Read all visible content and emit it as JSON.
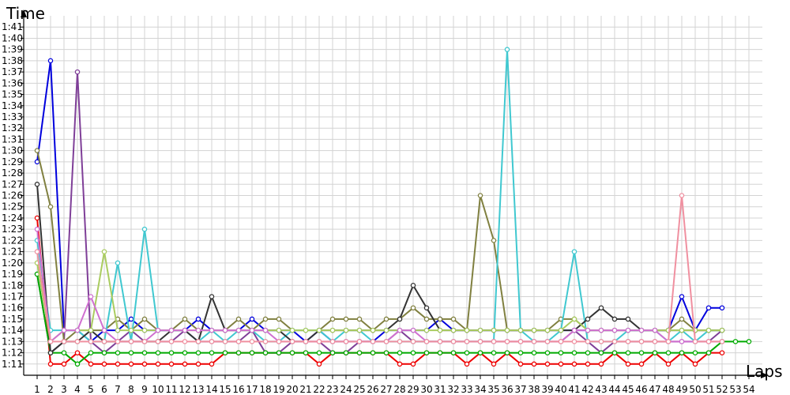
{
  "chart_data": {
    "type": "line",
    "xlabel": "Laps",
    "ylabel": "Time",
    "grid": true,
    "legend": "none",
    "x_ticks": [
      "1",
      "2",
      "3",
      "4",
      "5",
      "6",
      "7",
      "8",
      "9",
      "10",
      "11",
      "12",
      "13",
      "14",
      "15",
      "16",
      "17",
      "18",
      "19",
      "20",
      "21",
      "22",
      "23",
      "24",
      "25",
      "26",
      "27",
      "28",
      "29",
      "30",
      "31",
      "32",
      "33",
      "34",
      "35",
      "36",
      "37",
      "38",
      "39",
      "40",
      "41",
      "42",
      "43",
      "44",
      "45",
      "46",
      "47",
      "48",
      "49",
      "50",
      "51",
      "52",
      "53",
      "54"
    ],
    "y_ticks": [
      "1:11",
      "1:12",
      "1:13",
      "1:14",
      "1:15",
      "1:16",
      "1:17",
      "1:18",
      "1:19",
      "1:20",
      "1:21",
      "1:22",
      "1:23",
      "1:24",
      "1:25",
      "1:26",
      "1:27",
      "1:28",
      "1:29",
      "1:30",
      "1:31",
      "1:32",
      "1:33",
      "1:34",
      "1:35",
      "1:36",
      "1:37",
      "1:38",
      "1:39",
      "1:40",
      "1:41"
    ],
    "ylim": [
      70,
      102
    ],
    "xlim": [
      0,
      55
    ],
    "series": [
      {
        "color": "#0000dd",
        "values": [
          89,
          98,
          74,
          74,
          73,
          74,
          74,
          75,
          74,
          74,
          74,
          74,
          75,
          74,
          74,
          74,
          75,
          74,
          74,
          74,
          73,
          74,
          73,
          73,
          73,
          73,
          74,
          74,
          74,
          74,
          75,
          74,
          74,
          74,
          74,
          74,
          74,
          74,
          74,
          74,
          74,
          74,
          74,
          74,
          74,
          74,
          74,
          74,
          77,
          74,
          76,
          76,
          null,
          null
        ]
      },
      {
        "color": "#ee0000",
        "values": [
          84,
          71,
          71,
          72,
          71,
          71,
          71,
          71,
          71,
          71,
          71,
          71,
          71,
          71,
          72,
          72,
          72,
          72,
          72,
          72,
          72,
          71,
          72,
          72,
          72,
          72,
          72,
          71,
          71,
          72,
          72,
          72,
          71,
          72,
          71,
          72,
          71,
          71,
          71,
          71,
          71,
          71,
          71,
          72,
          71,
          71,
          72,
          71,
          72,
          71,
          72,
          72,
          null,
          null
        ]
      },
      {
        "color": "#7f3f98",
        "values": [
          79,
          72,
          73,
          97,
          73,
          72,
          73,
          74,
          73,
          73,
          73,
          74,
          73,
          73,
          73,
          73,
          74,
          72,
          72,
          73,
          73,
          73,
          72,
          72,
          73,
          73,
          73,
          74,
          73,
          73,
          73,
          73,
          73,
          73,
          73,
          73,
          73,
          73,
          73,
          73,
          74,
          73,
          72,
          73,
          73,
          73,
          73,
          73,
          73,
          73,
          73,
          74,
          null,
          null
        ]
      },
      {
        "color": "#808040",
        "values": [
          90,
          85,
          73,
          74,
          74,
          74,
          75,
          74,
          75,
          74,
          74,
          75,
          74,
          74,
          74,
          75,
          74,
          75,
          75,
          74,
          74,
          74,
          75,
          75,
          75,
          74,
          75,
          75,
          76,
          75,
          75,
          75,
          74,
          86,
          82,
          74,
          74,
          74,
          74,
          75,
          75,
          74,
          74,
          74,
          74,
          74,
          74,
          74,
          75,
          74,
          74,
          74,
          null,
          null
        ]
      },
      {
        "color": "#00aa00",
        "values": [
          79,
          72,
          72,
          71,
          72,
          72,
          72,
          72,
          72,
          72,
          72,
          72,
          72,
          72,
          72,
          72,
          72,
          72,
          72,
          72,
          72,
          72,
          72,
          72,
          72,
          72,
          72,
          72,
          72,
          72,
          72,
          72,
          72,
          72,
          72,
          72,
          72,
          72,
          72,
          72,
          72,
          72,
          72,
          72,
          72,
          72,
          72,
          72,
          72,
          72,
          72,
          73,
          73,
          73
        ]
      },
      {
        "color": "#40c8d0",
        "values": [
          82,
          74,
          74,
          74,
          73,
          73,
          80,
          73,
          83,
          74,
          74,
          74,
          73,
          74,
          73,
          74,
          74,
          73,
          73,
          74,
          74,
          74,
          73,
          74,
          74,
          73,
          73,
          73,
          73,
          73,
          73,
          73,
          73,
          73,
          73,
          99,
          74,
          73,
          73,
          74,
          81,
          73,
          73,
          73,
          74,
          74,
          74,
          73,
          74,
          73,
          74,
          74,
          null,
          null
        ]
      },
      {
        "color": "#333333",
        "values": [
          87,
          72,
          73,
          73,
          74,
          73,
          73,
          73,
          73,
          73,
          74,
          74,
          73,
          77,
          74,
          74,
          74,
          74,
          74,
          73,
          73,
          74,
          74,
          74,
          74,
          74,
          74,
          75,
          78,
          76,
          74,
          74,
          74,
          74,
          74,
          74,
          74,
          74,
          74,
          74,
          74,
          75,
          76,
          75,
          75,
          74,
          74,
          74,
          74,
          74,
          74,
          74,
          null,
          null
        ]
      },
      {
        "color": "#aacc60",
        "values": [
          80,
          73,
          74,
          74,
          74,
          81,
          74,
          74,
          74,
          74,
          74,
          74,
          74,
          74,
          74,
          74,
          74,
          74,
          74,
          74,
          74,
          74,
          74,
          74,
          74,
          74,
          74,
          74,
          74,
          74,
          74,
          74,
          74,
          74,
          74,
          74,
          74,
          74,
          74,
          74,
          75,
          74,
          74,
          74,
          74,
          74,
          74,
          74,
          74,
          74,
          74,
          74,
          null,
          null
        ]
      },
      {
        "color": "#d070d0",
        "values": [
          83,
          73,
          74,
          74,
          77,
          74,
          73,
          73,
          73,
          74,
          74,
          74,
          74,
          74,
          74,
          74,
          74,
          74,
          73,
          73,
          73,
          73,
          73,
          73,
          73,
          73,
          73,
          74,
          74,
          73,
          73,
          73,
          73,
          73,
          73,
          73,
          73,
          73,
          73,
          73,
          74,
          74,
          74,
          74,
          74,
          74,
          74,
          73,
          73,
          73,
          73,
          73,
          null,
          null
        ]
      },
      {
        "color": "#f090a0",
        "values": [
          81,
          73,
          73,
          73,
          73,
          73,
          73,
          73,
          73,
          73,
          73,
          73,
          73,
          73,
          73,
          73,
          73,
          73,
          73,
          73,
          73,
          73,
          73,
          73,
          73,
          73,
          73,
          73,
          73,
          73,
          73,
          73,
          73,
          73,
          73,
          73,
          73,
          73,
          73,
          73,
          73,
          73,
          73,
          73,
          73,
          73,
          73,
          73,
          86,
          73,
          73,
          73,
          null,
          null
        ]
      }
    ]
  }
}
